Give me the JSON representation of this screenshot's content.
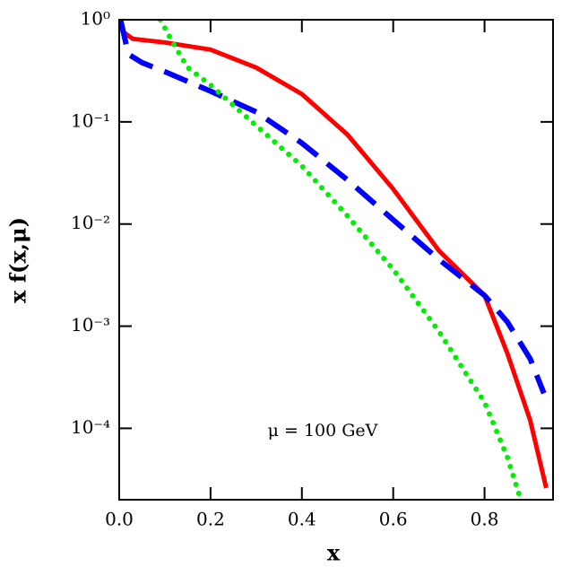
{
  "chart_data": {
    "type": "line",
    "xlabel": "x",
    "ylabel": "x f(x,μ)",
    "annotation": "μ = 100 GeV",
    "xlim": [
      0,
      0.95
    ],
    "ylim": [
      2e-05,
      1
    ],
    "yscale": "log",
    "xticks": [
      {
        "value": 0,
        "label": "0.0"
      },
      0.2,
      0.4,
      0.6,
      0.8
    ],
    "yticks": [
      {
        "value": 1,
        "label": "10⁰"
      },
      {
        "value": 0.1,
        "label": "10⁻¹"
      },
      {
        "value": 0.01,
        "label": "10⁻²"
      },
      {
        "value": 0.001,
        "label": "10⁻³"
      },
      {
        "value": 0.0001,
        "label": "10⁻⁴"
      }
    ],
    "series": [
      {
        "color": "#ff0000",
        "linestyle": "solid",
        "x": [
          0.003,
          0.01,
          0.03,
          0.1,
          0.2,
          0.3,
          0.4,
          0.5,
          0.6,
          0.7,
          0.8,
          0.85,
          0.9,
          0.935
        ],
        "values": [
          1.0,
          0.75,
          0.65,
          0.6,
          0.51,
          0.34,
          0.187,
          0.075,
          0.022,
          0.0055,
          0.002,
          0.00054,
          0.00012,
          2.6e-05
        ]
      },
      {
        "color": "#0000ff",
        "linestyle": "dashed",
        "x": [
          0.003,
          0.02,
          0.05,
          0.1,
          0.2,
          0.3,
          0.4,
          0.5,
          0.6,
          0.7,
          0.8,
          0.85,
          0.9,
          0.93
        ],
        "values": [
          1.0,
          0.46,
          0.38,
          0.31,
          0.2,
          0.125,
          0.062,
          0.027,
          0.011,
          0.0045,
          0.002,
          0.0011,
          0.00048,
          0.00022
        ]
      },
      {
        "color": "#00ee00",
        "linestyle": "dotted",
        "x": [
          0.09,
          0.12,
          0.15,
          0.2,
          0.3,
          0.4,
          0.5,
          0.6,
          0.7,
          0.8,
          0.85,
          0.875
        ],
        "values": [
          1.0,
          0.57,
          0.34,
          0.23,
          0.092,
          0.037,
          0.012,
          0.0036,
          0.00089,
          0.00018,
          5.2e-05,
          2.3e-05
        ]
      }
    ]
  }
}
